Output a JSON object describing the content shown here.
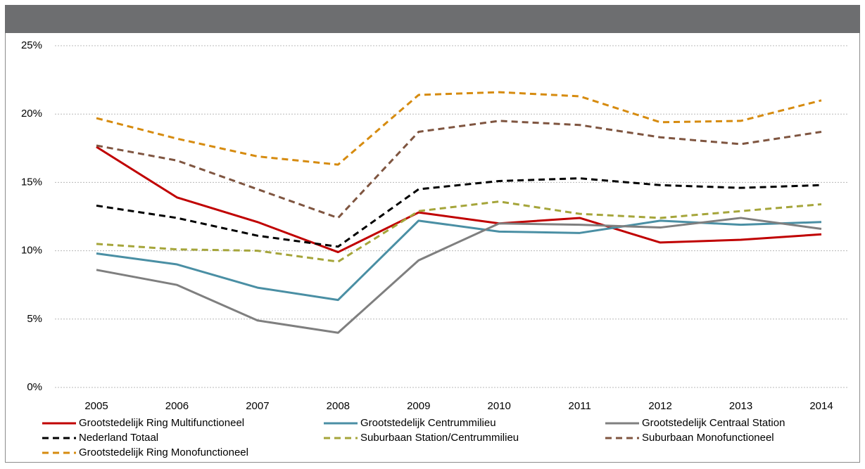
{
  "chart_data": {
    "type": "line",
    "categories": [
      "2005",
      "2006",
      "2007",
      "2008",
      "2009",
      "2010",
      "2011",
      "2012",
      "2013",
      "2014"
    ],
    "series": [
      {
        "name": "Grootstedelijk Ring Multifunctioneel",
        "color": "#c00000",
        "dashed": false,
        "values": [
          17.6,
          13.9,
          12.1,
          9.9,
          12.8,
          12.0,
          12.4,
          10.6,
          10.8,
          11.2
        ]
      },
      {
        "name": "Grootstedelijk Centrummilieu",
        "color": "#4a8fa4",
        "dashed": false,
        "values": [
          9.8,
          9.0,
          7.3,
          6.4,
          12.2,
          11.4,
          11.3,
          12.2,
          11.9,
          12.1
        ]
      },
      {
        "name": "Grootstedelijk Centraal Station",
        "color": "#7f7f7f",
        "dashed": false,
        "values": [
          8.6,
          7.5,
          4.9,
          4.0,
          9.3,
          12.0,
          11.9,
          11.7,
          12.4,
          11.6
        ]
      },
      {
        "name": "Nederland Totaal",
        "color": "#000000",
        "dashed": true,
        "values": [
          13.3,
          12.4,
          11.1,
          10.3,
          14.5,
          15.1,
          15.3,
          14.8,
          14.6,
          14.8
        ]
      },
      {
        "name": "Suburbaan Station/Centrummilieu",
        "color": "#a5a53a",
        "dashed": true,
        "values": [
          10.5,
          10.1,
          10.0,
          9.2,
          12.9,
          13.6,
          12.7,
          12.4,
          12.9,
          13.4
        ]
      },
      {
        "name": "Suburbaan Monofunctioneel",
        "color": "#7f5540",
        "dashed": true,
        "values": [
          17.7,
          16.6,
          14.5,
          12.4,
          18.7,
          19.5,
          19.2,
          18.3,
          17.8,
          18.7
        ]
      },
      {
        "name": "Grootstedelijk Ring Monofunctioneel",
        "color": "#d68b0f",
        "dashed": true,
        "values": [
          19.7,
          18.2,
          16.9,
          16.3,
          21.4,
          21.6,
          21.3,
          19.4,
          19.5,
          21.0
        ]
      }
    ],
    "ylim": [
      0,
      25
    ],
    "yticks": [
      {
        "value": 0,
        "label": "0%"
      },
      {
        "value": 5,
        "label": "5%"
      },
      {
        "value": 10,
        "label": "10%"
      },
      {
        "value": 15,
        "label": "15%"
      },
      {
        "value": 20,
        "label": "20%"
      },
      {
        "value": 25,
        "label": "25%"
      }
    ],
    "grid": true,
    "legend": "bottom"
  }
}
